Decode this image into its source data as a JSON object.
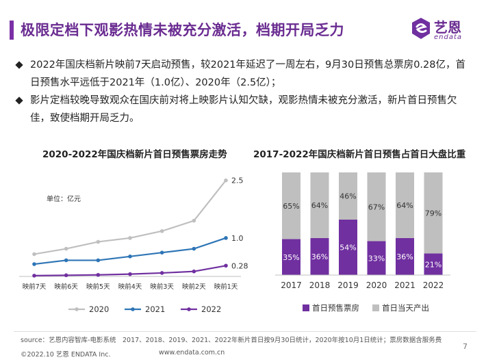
{
  "header": {
    "title": "极限定档下观影热情未被充分激活，档期开局乏力",
    "logo_cn": "艺恩",
    "logo_en": "endata"
  },
  "bullets": [
    {
      "text": "2022年国庆档新片映前7天启动预售，较2021年延迟了一周左右，9月30日预售总票房0.28亿，首日预售水平远低于2021年（1.0亿）、2020年（2.5亿）；"
    },
    {
      "text": "影片定档较晚导致观众在国庆前对将上映影片认知欠缺，观影热情未被充分激活，新片首日预售欠佳，致使档期开局乏力。"
    }
  ],
  "chart_data": [
    {
      "type": "line",
      "title": "2020-2022年国庆档新片首日预售票房走势",
      "unit_label": "单位：亿元",
      "categories": [
        "映前7天",
        "映前6天",
        "映前5天",
        "映前4天",
        "映前3天",
        "映前2天",
        "映前1天"
      ],
      "series": [
        {
          "name": "2020",
          "color": "#bfbfbf",
          "values": [
            0.58,
            0.72,
            0.9,
            1.0,
            1.18,
            1.45,
            2.5
          ],
          "end_label": "2.5"
        },
        {
          "name": "2021",
          "color": "#2e75b6",
          "values": [
            0.32,
            0.42,
            0.42,
            0.52,
            0.62,
            0.72,
            1.0
          ],
          "end_label": "1.0"
        },
        {
          "name": "2022",
          "color": "#7030a0",
          "values": [
            0.02,
            0.03,
            0.04,
            0.06,
            0.09,
            0.13,
            0.28
          ],
          "end_label": "0.28"
        }
      ],
      "ylim": [
        0,
        2.6
      ],
      "grid": false,
      "legend": "bottom"
    },
    {
      "type": "bar",
      "stacked": true,
      "title": "2017-2022年国庆档新片首日预售占首日大盘比重",
      "categories": [
        "2017",
        "2018",
        "2019",
        "2020",
        "2021",
        "2022"
      ],
      "series": [
        {
          "name": "首日预售票房",
          "color": "#7030a0",
          "values": [
            35,
            36,
            54,
            33,
            36,
            21
          ]
        },
        {
          "name": "首日当天产出",
          "color": "#bfbfbf",
          "values": [
            65,
            64,
            46,
            67,
            64,
            79
          ]
        }
      ],
      "ylim": [
        0,
        100
      ],
      "value_suffix": "%",
      "legend": "bottom"
    }
  ],
  "footer": {
    "source": "source：艺恩内容智库-电影系统　2017、2018、2019、2021、2022年新片首日按9月30日统计，2020年按10月1日统计；票房数据含服务费",
    "copyright": "©2022.10 艺恩 ENDATA Inc.",
    "website": "www.endata.com.cn",
    "page_number": "7"
  }
}
